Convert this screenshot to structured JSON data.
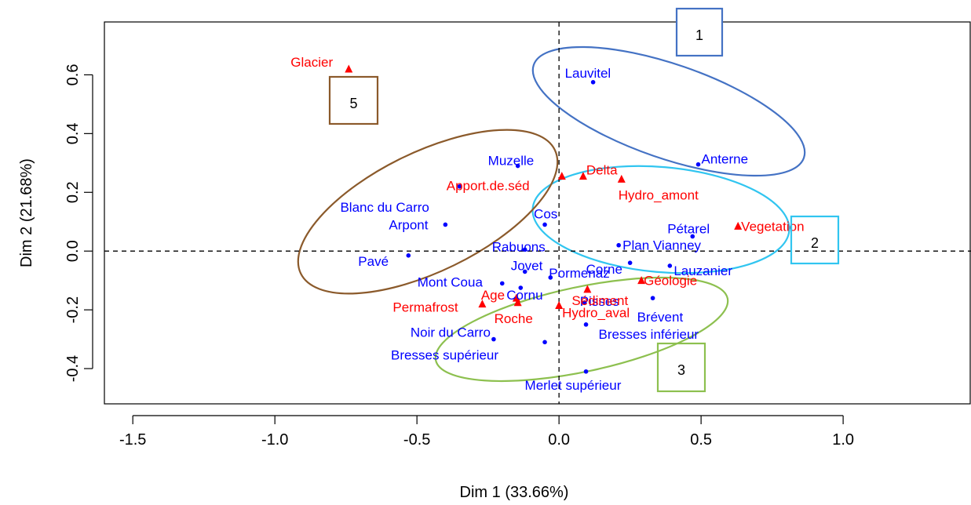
{
  "chart_data": {
    "type": "scatter",
    "xlabel": "Dim 1 (33.66%)",
    "ylabel": "Dim 2 (21.68%)",
    "xlim": [
      -1.6,
      1.45
    ],
    "ylim": [
      -0.52,
      0.78
    ],
    "x_ticks": [
      {
        "value": -1.5,
        "label": "-1.5"
      },
      {
        "value": -1.0,
        "label": "-1.0"
      },
      {
        "value": -0.5,
        "label": "-0.5"
      },
      {
        "value": 0.0,
        "label": "0.0"
      },
      {
        "value": 0.5,
        "label": "0.5"
      },
      {
        "value": 1.0,
        "label": "1.0"
      }
    ],
    "y_ticks": [
      {
        "value": -0.4,
        "label": "-0.4"
      },
      {
        "value": -0.2,
        "label": "-0.2"
      },
      {
        "value": 0.0,
        "label": "0.0"
      },
      {
        "value": 0.2,
        "label": "0.2"
      },
      {
        "value": 0.4,
        "label": "0.4"
      },
      {
        "value": 0.6,
        "label": "0.6"
      }
    ],
    "series": [
      {
        "marker": "circle",
        "color": "#0000FF",
        "points": [
          {
            "label": "Lauvitel",
            "x": 0.12,
            "y": 0.575
          },
          {
            "label": "Anterne",
            "x": 0.49,
            "y": 0.295
          },
          {
            "label": "Muzelle",
            "x": -0.145,
            "y": 0.29
          },
          {
            "label": "Blanc du Carro",
            "x": -0.35,
            "y": 0.22
          },
          {
            "label": "Arpont",
            "x": -0.4,
            "y": 0.09
          },
          {
            "label": "Pavé",
            "x": -0.53,
            "y": -0.015
          },
          {
            "label": "Cos",
            "x": -0.05,
            "y": 0.09
          },
          {
            "label": "Rabuons",
            "x": -0.12,
            "y": 0.005
          },
          {
            "label": "Plan Vianney",
            "x": 0.21,
            "y": 0.02
          },
          {
            "label": "Pétarel",
            "x": 0.47,
            "y": 0.05
          },
          {
            "label": "Corne",
            "x": 0.25,
            "y": -0.04
          },
          {
            "label": "Lauzanier",
            "x": 0.39,
            "y": -0.05
          },
          {
            "label": "Jovet",
            "x": -0.12,
            "y": -0.07
          },
          {
            "label": "Pormenaz",
            "x": -0.03,
            "y": -0.09
          },
          {
            "label": "Mont Coua",
            "x": -0.2,
            "y": -0.11
          },
          {
            "label": "Cornu",
            "x": -0.135,
            "y": -0.125
          },
          {
            "label": "Pisses",
            "x": 0.09,
            "y": -0.175
          },
          {
            "label": "Brévent",
            "x": 0.33,
            "y": -0.16
          },
          {
            "label": "Noir du Carro",
            "x": -0.23,
            "y": -0.3
          },
          {
            "label": "Bresses supérieur",
            "x": -0.05,
            "y": -0.31
          },
          {
            "label": "Bresses inférieur",
            "x": 0.095,
            "y": -0.25
          },
          {
            "label": "Merlet supérieur",
            "x": 0.095,
            "y": -0.41
          }
        ]
      },
      {
        "marker": "triangle",
        "color": "#FF0000",
        "points": [
          {
            "label": "Glacier",
            "x": -0.74,
            "y": 0.62
          },
          {
            "label": "Apport.de.séd",
            "x": 0.01,
            "y": 0.255
          },
          {
            "label": "Delta",
            "x": 0.085,
            "y": 0.255
          },
          {
            "label": "Hydro_amont",
            "x": 0.22,
            "y": 0.245
          },
          {
            "label": "Vegetation",
            "x": 0.63,
            "y": 0.085
          },
          {
            "label": "Géologie",
            "x": 0.29,
            "y": -0.1
          },
          {
            "label": "Sédiment",
            "x": 0.1,
            "y": -0.13
          },
          {
            "label": "Age",
            "x": -0.15,
            "y": -0.16
          },
          {
            "label": "Permafrost",
            "x": -0.27,
            "y": -0.18
          },
          {
            "label": "Roche",
            "x": -0.145,
            "y": -0.175
          },
          {
            "label": "Hydro_aval",
            "x": 0.0,
            "y": -0.185
          }
        ]
      }
    ],
    "annotations": [
      {
        "label": "1",
        "color": "#4472C4"
      },
      {
        "label": "2",
        "color": "#31C5F0"
      },
      {
        "label": "3",
        "color": "#8DC04F"
      },
      {
        "label": "5",
        "color": "#8B5A2B"
      }
    ]
  }
}
